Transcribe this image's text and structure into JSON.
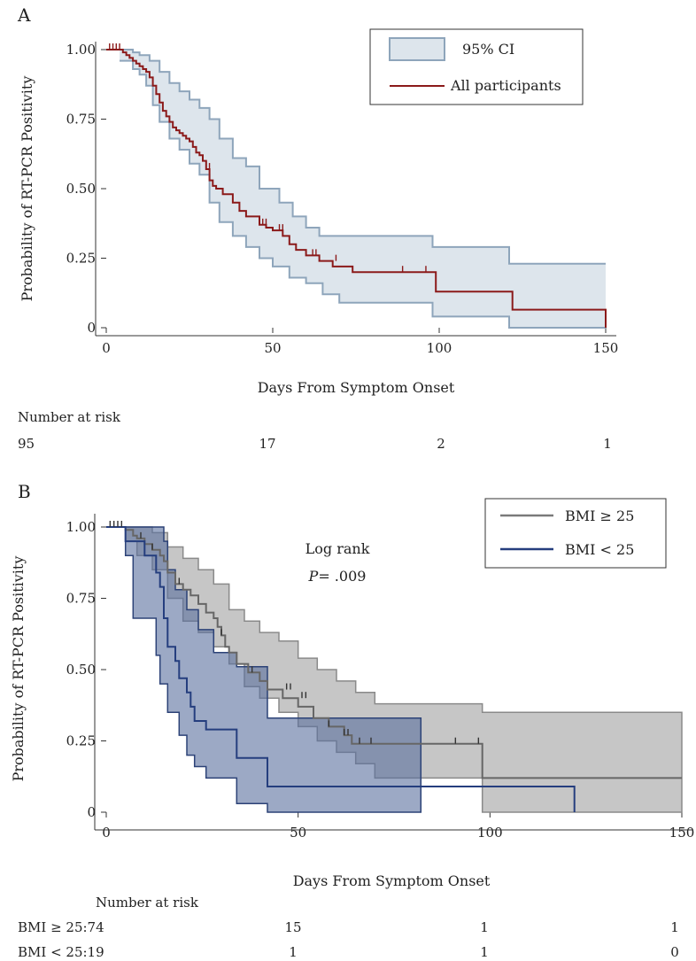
{
  "chart_data": [
    {
      "type": "line",
      "subtype": "kaplan-meier",
      "panel": "A",
      "xlabel": "Days From Symptom Onset",
      "ylabel": "Probability of RT-PCR Positivity",
      "xlim": [
        0,
        150
      ],
      "ylim": [
        0,
        1
      ],
      "xticks": [
        "0",
        "50",
        "100",
        "150"
      ],
      "yticks": [
        "0",
        "0.25",
        "0.50",
        "0.75",
        "1.00"
      ],
      "legend": {
        "position": "top-right",
        "entries": [
          "95% CI",
          "All participants"
        ]
      },
      "colors": {
        "estimate": "#8b1a1a",
        "ci_fill": "#dde5ec",
        "ci_line": "#8ea5bb"
      },
      "series": [
        {
          "name": "All participants",
          "x": [
            0,
            5,
            6,
            7,
            8,
            9,
            10,
            11,
            12,
            13,
            14,
            15,
            16,
            17,
            18,
            19,
            20,
            21,
            22,
            23,
            24,
            25,
            26,
            27,
            28,
            29,
            30,
            31,
            32,
            33,
            35,
            38,
            40,
            42,
            46,
            48,
            50,
            53,
            55,
            57,
            60,
            64,
            68,
            74,
            99,
            122,
            150
          ],
          "y": [
            1.0,
            0.99,
            0.98,
            0.97,
            0.96,
            0.95,
            0.94,
            0.93,
            0.92,
            0.9,
            0.87,
            0.84,
            0.81,
            0.78,
            0.76,
            0.74,
            0.72,
            0.71,
            0.7,
            0.69,
            0.68,
            0.67,
            0.65,
            0.63,
            0.62,
            0.6,
            0.57,
            0.53,
            0.51,
            0.5,
            0.48,
            0.45,
            0.42,
            0.4,
            0.37,
            0.36,
            0.35,
            0.33,
            0.3,
            0.28,
            0.26,
            0.24,
            0.22,
            0.2,
            0.13,
            0.065,
            0.0
          ],
          "censored": {
            "x": [
              1,
              2,
              3,
              4,
              31,
              46,
              47,
              48,
              52,
              53,
              62,
              63,
              69,
              89,
              96
            ],
            "y": [
              1.0,
              1.0,
              1.0,
              1.0,
              0.57,
              0.37,
              0.37,
              0.37,
              0.35,
              0.35,
              0.26,
              0.26,
              0.24,
              0.2,
              0.2
            ]
          }
        },
        {
          "name": "95% CI upper",
          "x": [
            4,
            8,
            10,
            13,
            16,
            19,
            22,
            25,
            28,
            31,
            34,
            38,
            42,
            46,
            52,
            56,
            60,
            64,
            98,
            121,
            150
          ],
          "y": [
            1.0,
            0.99,
            0.98,
            0.96,
            0.92,
            0.88,
            0.85,
            0.82,
            0.79,
            0.75,
            0.68,
            0.61,
            0.58,
            0.5,
            0.45,
            0.4,
            0.36,
            0.33,
            0.29,
            0.23,
            0.23
          ]
        },
        {
          "name": "95% CI lower",
          "x": [
            4,
            8,
            10,
            12,
            14,
            16,
            19,
            22,
            25,
            28,
            31,
            34,
            38,
            42,
            46,
            50,
            55,
            60,
            65,
            70,
            98,
            121,
            150
          ],
          "y": [
            0.96,
            0.93,
            0.91,
            0.87,
            0.8,
            0.74,
            0.68,
            0.64,
            0.59,
            0.55,
            0.45,
            0.38,
            0.33,
            0.29,
            0.25,
            0.22,
            0.18,
            0.16,
            0.12,
            0.09,
            0.04,
            0.0,
            0.0
          ]
        }
      ],
      "risk_table": {
        "title": "Number at risk",
        "times": [
          0,
          50,
          100,
          150
        ],
        "rows": [
          {
            "label": "",
            "counts": [
              "95",
              "17",
              "2",
              "1"
            ]
          }
        ]
      }
    },
    {
      "type": "line",
      "subtype": "kaplan-meier",
      "panel": "B",
      "xlabel": "Days From Symptom Onset",
      "ylabel": "Probability of RT-PCR Positivity",
      "xlim": [
        0,
        150
      ],
      "ylim": [
        0,
        1
      ],
      "xticks": [
        "0",
        "50",
        "100",
        "150"
      ],
      "yticks": [
        "0",
        "0.25",
        "0.50",
        "0.75",
        "1.00"
      ],
      "annotation": {
        "line1": "Log rank",
        "p_label": "P",
        "p_value": "= .009"
      },
      "legend": {
        "position": "top-right",
        "entries": [
          "BMI ≥ 25",
          "BMI < 25"
        ]
      },
      "colors": {
        "bmi_high": "#666666",
        "bmi_high_fill": "#b3b3b3",
        "bmi_low": "#253e7e",
        "bmi_low_fill": "#7d8fb3"
      },
      "series": [
        {
          "name": "BMI ≥ 25",
          "x": [
            0,
            5,
            7,
            8,
            10,
            12,
            14,
            15,
            16,
            18,
            20,
            22,
            24,
            26,
            28,
            29,
            30,
            31,
            32,
            34,
            37,
            40,
            42,
            46,
            50,
            54,
            58,
            62,
            64,
            98,
            150
          ],
          "y": [
            1.0,
            0.99,
            0.97,
            0.96,
            0.94,
            0.92,
            0.9,
            0.88,
            0.84,
            0.8,
            0.78,
            0.76,
            0.73,
            0.7,
            0.68,
            0.65,
            0.62,
            0.58,
            0.56,
            0.52,
            0.49,
            0.46,
            0.43,
            0.4,
            0.37,
            0.33,
            0.3,
            0.27,
            0.24,
            0.12,
            0.12
          ],
          "censored": {
            "x": [
              1,
              2,
              3,
              4,
              9,
              12,
              19,
              30,
              38,
              47,
              48,
              51,
              52,
              58,
              62,
              63,
              66,
              69,
              91,
              97
            ],
            "y": [
              1.0,
              1.0,
              1.0,
              1.0,
              0.96,
              0.92,
              0.8,
              0.62,
              0.49,
              0.43,
              0.43,
              0.4,
              0.4,
              0.3,
              0.27,
              0.27,
              0.24,
              0.24,
              0.24,
              0.24
            ]
          }
        },
        {
          "name": "BMI < 25",
          "x": [
            0,
            5,
            7,
            10,
            13,
            14,
            15,
            16,
            18,
            19,
            21,
            22,
            23,
            26,
            34,
            42,
            122
          ],
          "y": [
            1.0,
            0.95,
            0.95,
            0.9,
            0.84,
            0.79,
            0.68,
            0.58,
            0.53,
            0.47,
            0.42,
            0.37,
            0.32,
            0.29,
            0.19,
            0.09,
            0.0
          ]
        },
        {
          "name": "BMI ≥ 25 CI upper",
          "x": [
            5,
            8,
            12,
            16,
            20,
            24,
            28,
            32,
            36,
            40,
            45,
            50,
            55,
            60,
            65,
            70,
            98,
            150
          ],
          "y": [
            1.0,
            1.0,
            0.98,
            0.93,
            0.89,
            0.85,
            0.8,
            0.71,
            0.67,
            0.63,
            0.6,
            0.54,
            0.5,
            0.46,
            0.42,
            0.38,
            0.35,
            0.35
          ]
        },
        {
          "name": "BMI ≥ 25 CI lower",
          "x": [
            5,
            8,
            12,
            16,
            20,
            24,
            28,
            32,
            36,
            40,
            45,
            50,
            55,
            60,
            65,
            70,
            98,
            150
          ],
          "y": [
            0.95,
            0.9,
            0.85,
            0.75,
            0.67,
            0.63,
            0.58,
            0.52,
            0.44,
            0.4,
            0.35,
            0.3,
            0.25,
            0.21,
            0.17,
            0.12,
            0.0,
            0.0
          ]
        },
        {
          "name": "BMI < 25 CI upper",
          "x": [
            5,
            13,
            15,
            16,
            18,
            21,
            24,
            28,
            34,
            42,
            82
          ],
          "y": [
            1.0,
            1.0,
            0.95,
            0.85,
            0.78,
            0.71,
            0.64,
            0.56,
            0.51,
            0.33,
            0.33
          ]
        },
        {
          "name": "BMI < 25 CI lower",
          "x": [
            5,
            7,
            13,
            14,
            16,
            19,
            21,
            23,
            26,
            34,
            42,
            82
          ],
          "y": [
            0.9,
            0.68,
            0.55,
            0.45,
            0.35,
            0.27,
            0.2,
            0.16,
            0.12,
            0.03,
            0.0,
            0.0
          ]
        }
      ],
      "risk_table": {
        "title": "Number at risk",
        "times": [
          0,
          50,
          100,
          150
        ],
        "rows": [
          {
            "label": "BMI ≥ 25:74",
            "counts": [
              "",
              "15",
              "1",
              "1"
            ]
          },
          {
            "label": "BMI < 25:19",
            "counts": [
              "",
              "1",
              "1",
              "0"
            ]
          }
        ]
      }
    }
  ]
}
